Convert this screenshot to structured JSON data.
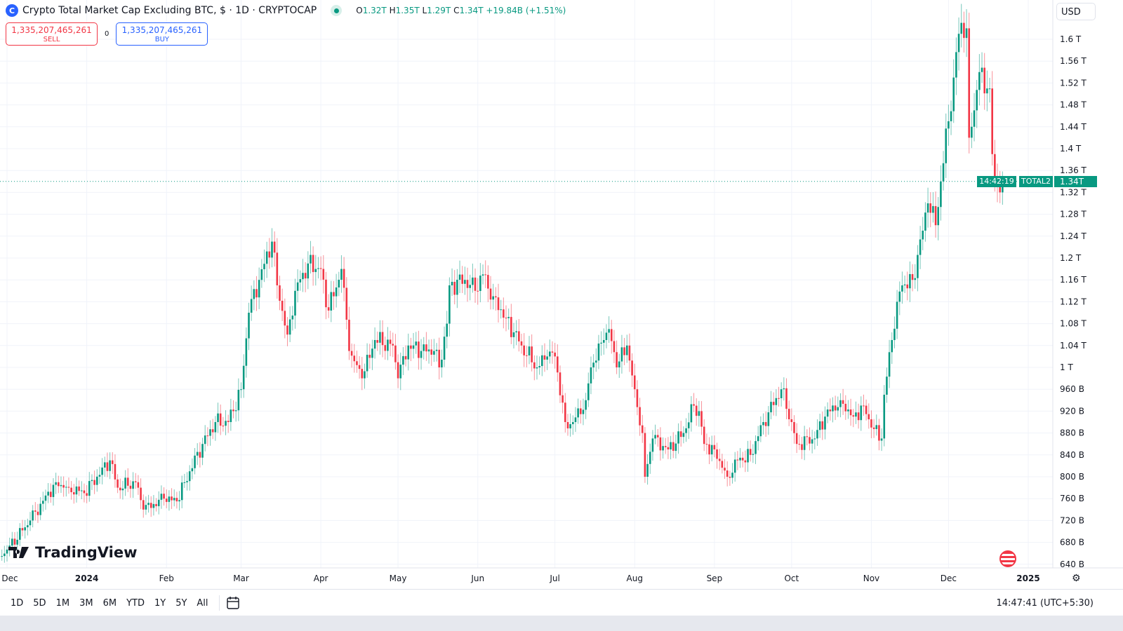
{
  "header": {
    "logo_icon": "crypto-cap-logo",
    "title": "Crypto Total Market Cap Excluding BTC, $ · 1D · CRYPTOCAP",
    "status": "market-open-dot",
    "ohlc": {
      "o_label": "O",
      "o": "1.32T",
      "h_label": "H",
      "h": "1.35T",
      "l_label": "L",
      "l": "1.29T",
      "c_label": "C",
      "c": "1.34T",
      "change": "+19.84B (+1.51%)"
    }
  },
  "trade": {
    "sell_price": "1,335,207,465,261",
    "sell_label": "SELL",
    "spread": "0",
    "buy_price": "1,335,207,465,261",
    "buy_label": "BUY"
  },
  "currency": "USD",
  "symbol_tag": "TOTAL2",
  "last_price": "1.34T",
  "countdown": "14:42:19",
  "brand": "TradingView",
  "toolbar": {
    "ranges": [
      "1D",
      "5D",
      "1M",
      "3M",
      "6M",
      "YTD",
      "1Y",
      "5Y",
      "All"
    ],
    "goto_icon": "calendar-goto-icon",
    "clock": "14:47:41 (UTC+5:30)"
  },
  "colors": {
    "up": "#089981",
    "down": "#f23645",
    "accent": "#2962ff"
  },
  "chart_data": {
    "type": "candlestick",
    "interval": "1D",
    "y_unit": "USD (B)",
    "ylim": [
      620,
      1660
    ],
    "y_ticks": [
      "1.6 T",
      "1.56 T",
      "1.52 T",
      "1.48 T",
      "1.44 T",
      "1.4 T",
      "1.36 T",
      "1.32 T",
      "1.28 T",
      "1.24 T",
      "1.2 T",
      "1.16 T",
      "1.12 T",
      "1.08 T",
      "1.04 T",
      "1 T",
      "960 B",
      "920 B",
      "880 B",
      "840 B",
      "800 B",
      "760 B",
      "720 B",
      "680 B",
      "640 B"
    ],
    "x_ticks": [
      {
        "label": "Dec",
        "date": "2023-12-01"
      },
      {
        "label": "2024",
        "date": "2024-01-01"
      },
      {
        "label": "Feb",
        "date": "2024-02-01"
      },
      {
        "label": "Mar",
        "date": "2024-03-01"
      },
      {
        "label": "Apr",
        "date": "2024-04-01"
      },
      {
        "label": "May",
        "date": "2024-05-01"
      },
      {
        "label": "Jun",
        "date": "2024-06-01"
      },
      {
        "label": "Jul",
        "date": "2024-07-01"
      },
      {
        "label": "Aug",
        "date": "2024-08-01"
      },
      {
        "label": "Sep",
        "date": "2024-09-01"
      },
      {
        "label": "Oct",
        "date": "2024-10-01"
      },
      {
        "label": "Nov",
        "date": "2024-11-01"
      },
      {
        "label": "Dec",
        "date": "2024-12-01"
      },
      {
        "label": "2025",
        "date": "2025-01-01"
      }
    ],
    "last_value": 1340,
    "closes_approx": [
      [
        "2023-11-29",
        655
      ],
      [
        "2023-12-10",
        720
      ],
      [
        "2023-12-20",
        790
      ],
      [
        "2023-12-25",
        780
      ],
      [
        "2023-12-31",
        770
      ],
      [
        "2024-01-10",
        830
      ],
      [
        "2024-01-13",
        780
      ],
      [
        "2024-01-20",
        790
      ],
      [
        "2024-01-23",
        740
      ],
      [
        "2024-01-31",
        760
      ],
      [
        "2024-02-05",
        755
      ],
      [
        "2024-02-10",
        810
      ],
      [
        "2024-02-15",
        860
      ],
      [
        "2024-02-20",
        900
      ],
      [
        "2024-02-25",
        900
      ],
      [
        "2024-03-01",
        960
      ],
      [
        "2024-03-04",
        1100
      ],
      [
        "2024-03-08",
        1160
      ],
      [
        "2024-03-13",
        1230
      ],
      [
        "2024-03-15",
        1150
      ],
      [
        "2024-03-19",
        1060
      ],
      [
        "2024-03-22",
        1140
      ],
      [
        "2024-03-27",
        1190
      ],
      [
        "2024-04-01",
        1180
      ],
      [
        "2024-04-03",
        1110
      ],
      [
        "2024-04-06",
        1130
      ],
      [
        "2024-04-09",
        1180
      ],
      [
        "2024-04-12",
        1030
      ],
      [
        "2024-04-17",
        980
      ],
      [
        "2024-04-22",
        1050
      ],
      [
        "2024-04-29",
        1040
      ],
      [
        "2024-05-01",
        980
      ],
      [
        "2024-05-05",
        1040
      ],
      [
        "2024-05-10",
        1030
      ],
      [
        "2024-05-15",
        1030
      ],
      [
        "2024-05-17",
        1000
      ],
      [
        "2024-05-20",
        1080
      ],
      [
        "2024-05-21",
        1150
      ],
      [
        "2024-05-27",
        1160
      ],
      [
        "2024-05-31",
        1140
      ],
      [
        "2024-06-03",
        1170
      ],
      [
        "2024-06-07",
        1130
      ],
      [
        "2024-06-12",
        1090
      ],
      [
        "2024-06-18",
        1040
      ],
      [
        "2024-06-24",
        1000
      ],
      [
        "2024-06-28",
        1020
      ],
      [
        "2024-07-01",
        1020
      ],
      [
        "2024-07-05",
        900
      ],
      [
        "2024-07-08",
        900
      ],
      [
        "2024-07-13",
        940
      ],
      [
        "2024-07-15",
        1000
      ],
      [
        "2024-07-20",
        1050
      ],
      [
        "2024-07-22",
        1070
      ],
      [
        "2024-07-25",
        1000
      ],
      [
        "2024-07-29",
        1040
      ],
      [
        "2024-08-01",
        960
      ],
      [
        "2024-08-04",
        880
      ],
      [
        "2024-08-05",
        800
      ],
      [
        "2024-08-08",
        870
      ],
      [
        "2024-08-14",
        850
      ],
      [
        "2024-08-20",
        880
      ],
      [
        "2024-08-24",
        930
      ],
      [
        "2024-08-26",
        920
      ],
      [
        "2024-08-28",
        860
      ],
      [
        "2024-09-01",
        850
      ],
      [
        "2024-09-06",
        800
      ],
      [
        "2024-09-10",
        830
      ],
      [
        "2024-09-15",
        840
      ],
      [
        "2024-09-20",
        900
      ],
      [
        "2024-09-27",
        960
      ],
      [
        "2024-10-01",
        900
      ],
      [
        "2024-10-03",
        860
      ],
      [
        "2024-10-10",
        870
      ],
      [
        "2024-10-14",
        910
      ],
      [
        "2024-10-20",
        940
      ],
      [
        "2024-10-25",
        910
      ],
      [
        "2024-10-29",
        930
      ],
      [
        "2024-11-01",
        890
      ],
      [
        "2024-11-05",
        870
      ],
      [
        "2024-11-06",
        950
      ],
      [
        "2024-11-09",
        1050
      ],
      [
        "2024-11-11",
        1120
      ],
      [
        "2024-11-13",
        1150
      ],
      [
        "2024-11-17",
        1160
      ],
      [
        "2024-11-21",
        1250
      ],
      [
        "2024-11-23",
        1300
      ],
      [
        "2024-11-26",
        1260
      ],
      [
        "2024-11-28",
        1340
      ],
      [
        "2024-12-03",
        1530
      ],
      [
        "2024-12-05",
        1610
      ],
      [
        "2024-12-06",
        1630
      ],
      [
        "2024-12-08",
        1620
      ],
      [
        "2024-12-09",
        1420
      ],
      [
        "2024-12-10",
        1440
      ],
      [
        "2024-12-13",
        1540
      ],
      [
        "2024-12-16",
        1510
      ],
      [
        "2024-12-17",
        1510
      ],
      [
        "2024-12-18",
        1390
      ],
      [
        "2024-12-19",
        1350
      ],
      [
        "2024-12-20",
        1330
      ],
      [
        "2024-12-21",
        1320
      ],
      [
        "2024-12-22",
        1340
      ]
    ]
  }
}
